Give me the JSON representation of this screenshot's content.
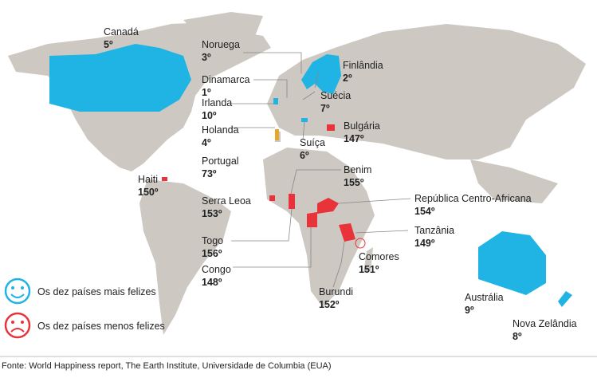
{
  "labels": [
    {
      "name": "Canadá",
      "rank": "5º"
    },
    {
      "name": "Noruega",
      "rank": "3º"
    },
    {
      "name": "Dinamarca",
      "rank": "1º"
    },
    {
      "name": "Irlanda",
      "rank": "10º"
    },
    {
      "name": "Holanda",
      "rank": "4º"
    },
    {
      "name": "Portugal",
      "rank": "73º"
    },
    {
      "name": "Haiti",
      "rank": "150º"
    },
    {
      "name": "Serra Leoa",
      "rank": "153º"
    },
    {
      "name": "Togo",
      "rank": "156º"
    },
    {
      "name": "Congo",
      "rank": "148º"
    },
    {
      "name": "Finlândia",
      "rank": "2º"
    },
    {
      "name": "Suécia",
      "rank": "7º"
    },
    {
      "name": "Bulgária",
      "rank": "147º"
    },
    {
      "name": "Suíça",
      "rank": "6º"
    },
    {
      "name": "Benim",
      "rank": "155º"
    },
    {
      "name": "República Centro-Africana",
      "rank": "154º"
    },
    {
      "name": "Tanzânia",
      "rank": "149º"
    },
    {
      "name": "Comores",
      "rank": "151º"
    },
    {
      "name": "Burundi",
      "rank": "152º"
    },
    {
      "name": "Austrália",
      "rank": "9º"
    },
    {
      "name": "Nova Zelândia",
      "rank": "8º"
    }
  ],
  "legend": {
    "happy": "Os dez países mais felizes",
    "sad": "Os dez países menos felizes"
  },
  "source": "Fonte: World Happiness report, The Earth Institute, Universidade de Columbia (EUA)"
}
